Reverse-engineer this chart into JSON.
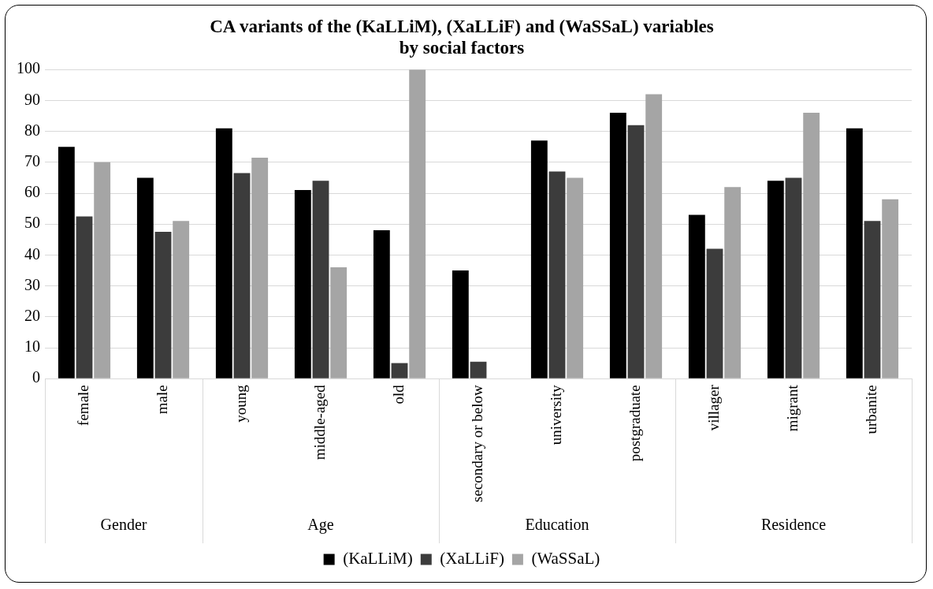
{
  "chart_data": {
    "type": "bar",
    "title": "CA variants of the (KaLLiM), (XaLLiF) and (WaSSaL) variables\nby social factors",
    "categories": [
      "female",
      "male",
      "young",
      "middle-aged",
      "old",
      "secondary or below",
      "university",
      "postgraduate",
      "villager",
      "migrant",
      "urbanite"
    ],
    "series": [
      {
        "name": "(KaLLiM)",
        "color": "#000000",
        "values": [
          75,
          65,
          81,
          61,
          48,
          35,
          77,
          86,
          53,
          64,
          81
        ]
      },
      {
        "name": "(XaLLiF)",
        "color": "#3c3c3c",
        "values": [
          52.5,
          47.5,
          66.5,
          64,
          5,
          5.5,
          67,
          82,
          42,
          65,
          51
        ]
      },
      {
        "name": "(WaSSaL)",
        "color": "#a5a5a5",
        "values": [
          70,
          51,
          71.5,
          36,
          100,
          0,
          65,
          92,
          62,
          86,
          58
        ]
      }
    ],
    "annotations": [
      "Gender",
      "Age",
      "Education",
      "Residence"
    ],
    "ylim": [
      0,
      100
    ],
    "yticks": [
      0,
      10,
      20,
      30,
      40,
      50,
      60,
      70,
      80,
      90,
      100
    ],
    "grid": "y",
    "legend": "bottom"
  }
}
